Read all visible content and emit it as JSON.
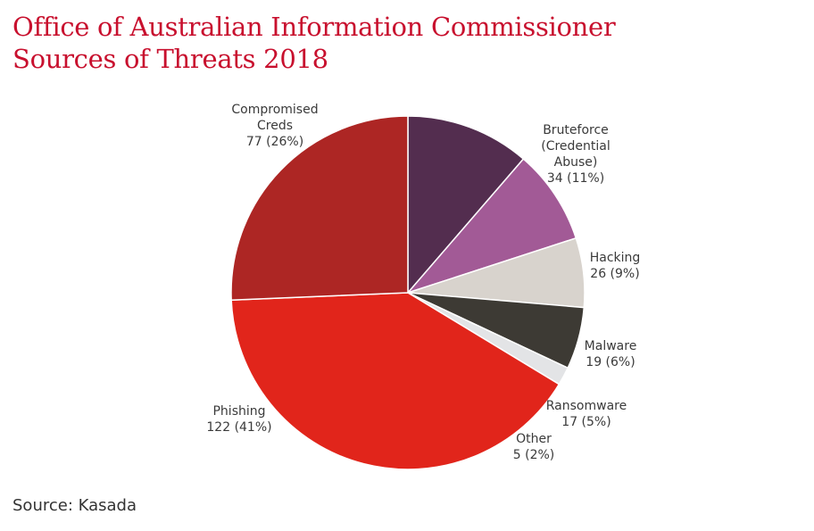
{
  "title": {
    "line1": "Office of Australian Information Commissioner",
    "line2": "Sources of Threats 2018"
  },
  "source": "Source: Kasada",
  "colors": {
    "title": "#c8102e",
    "text": "#3a3a3a"
  },
  "chart_data": {
    "type": "pie",
    "start_angle_deg": 0,
    "direction": "clockwise",
    "slices": [
      {
        "label_lines": [
          "Bruteforce",
          "(Credential",
          "Abuse)",
          "34 (11%)"
        ],
        "name": "Bruteforce (Credential Abuse)",
        "value": 34,
        "percent": 11,
        "color": "#532d4f"
      },
      {
        "label_lines": [
          "Hacking",
          "26 (9%)"
        ],
        "name": "Hacking",
        "value": 26,
        "percent": 9,
        "color": "#a25a96"
      },
      {
        "label_lines": [
          "Malware",
          "19 (6%)"
        ],
        "name": "Malware",
        "value": 19,
        "percent": 6,
        "color": "#d8d3cd"
      },
      {
        "label_lines": [
          "Ransomware",
          "17 (5%)"
        ],
        "name": "Ransomware",
        "value": 17,
        "percent": 5,
        "color": "#3d3a34"
      },
      {
        "label_lines": [
          "Other",
          "5 (2%)"
        ],
        "name": "Other",
        "value": 5,
        "percent": 2,
        "color": "#e3e4e6"
      },
      {
        "label_lines": [
          "Phishing",
          "122 (41%)"
        ],
        "name": "Phishing",
        "value": 122,
        "percent": 41,
        "color": "#e1251b"
      },
      {
        "label_lines": [
          "Compromised",
          "Creds",
          "77 (26%)"
        ],
        "name": "Compromised Creds",
        "value": 77,
        "percent": 26,
        "color": "#ad2624"
      }
    ]
  }
}
